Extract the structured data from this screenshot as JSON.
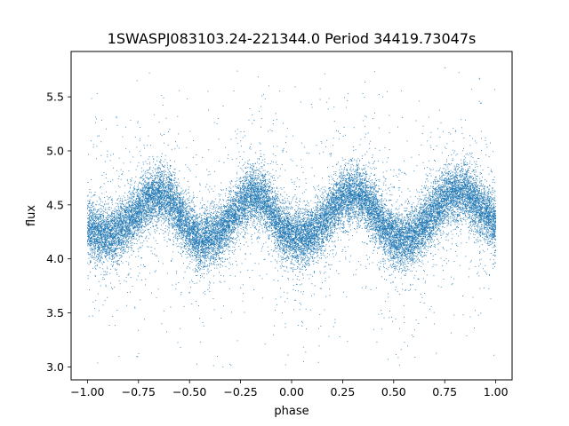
{
  "chart_data": {
    "type": "scatter",
    "title": "1SWASPJ083103.24-221344.0 Period 34419.73047s",
    "xlabel": "phase",
    "ylabel": "flux",
    "xlim": [
      -1.08,
      1.08
    ],
    "ylim": [
      2.88,
      5.92
    ],
    "xticks": [
      -1.0,
      -0.75,
      -0.5,
      -0.25,
      0.0,
      0.25,
      0.5,
      0.75,
      1.0
    ],
    "xtick_labels": [
      "−1.00",
      "−0.75",
      "−0.50",
      "−0.25",
      "0.00",
      "0.25",
      "0.50",
      "0.75",
      "1.00"
    ],
    "yticks": [
      3.0,
      3.5,
      4.0,
      4.5,
      5.0,
      5.5
    ],
    "ytick_labels": [
      "3.0",
      "3.5",
      "4.0",
      "4.5",
      "5.0",
      "5.5"
    ],
    "grid": false,
    "marker_color": "#1f77b4",
    "series": [
      {
        "phase": [
          -1.0,
          -0.95,
          -0.9,
          -0.85,
          -0.8,
          -0.75,
          -0.7,
          -0.65,
          -0.6,
          -0.55,
          -0.5,
          -0.45,
          -0.4,
          -0.35,
          -0.3,
          -0.25,
          -0.2,
          -0.15,
          -0.1,
          -0.05,
          0.0,
          0.05,
          0.1,
          0.15,
          0.2,
          0.25,
          0.3,
          0.35,
          0.4,
          0.45,
          0.5,
          0.55,
          0.6,
          0.65,
          0.7,
          0.75,
          0.8,
          0.85,
          0.9,
          0.95,
          1.0
        ],
        "flux_mean": [
          4.3,
          4.22,
          4.21,
          4.25,
          4.33,
          4.45,
          4.56,
          4.6,
          4.56,
          4.42,
          4.25,
          4.17,
          4.18,
          4.24,
          4.37,
          4.5,
          4.6,
          4.58,
          4.45,
          4.27,
          4.22,
          4.2,
          4.24,
          4.33,
          4.45,
          4.56,
          4.6,
          4.57,
          4.46,
          4.3,
          4.2,
          4.16,
          4.21,
          4.32,
          4.44,
          4.56,
          4.62,
          4.61,
          4.53,
          4.42,
          4.33
        ],
        "flux_spread": 0.13,
        "point_count": 24000
      }
    ]
  }
}
